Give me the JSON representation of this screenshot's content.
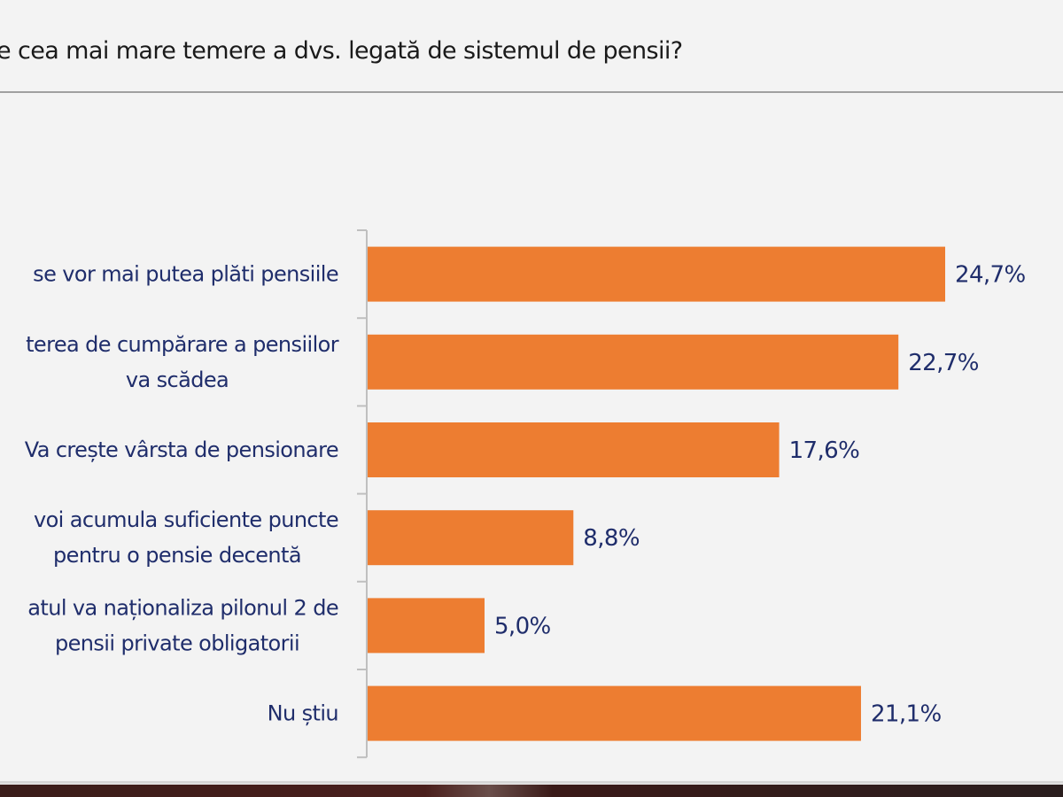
{
  "chart_data": {
    "type": "bar",
    "orientation": "horizontal",
    "title": "e cea mai mare temere a dvs. legată de sistemul de pensii?",
    "categories": [
      [
        "se vor mai putea plăti pensiile"
      ],
      [
        "terea de cumpărare a pensiilor",
        "va scădea"
      ],
      [
        "Va crește vârsta de pensionare"
      ],
      [
        "voi acumula suficiente puncte",
        "pentru o pensie decentă"
      ],
      [
        "atul va naționaliza pilonul 2 de",
        "pensii private obligatorii"
      ],
      [
        "Nu știu"
      ]
    ],
    "values": [
      24.7,
      22.7,
      17.6,
      8.8,
      5.0,
      21.1
    ],
    "value_labels": [
      "24,7%",
      "22,7%",
      "17,6%",
      "8,8%",
      "5,0%",
      "21,1%"
    ],
    "xlim": [
      0,
      25
    ],
    "grid": false,
    "colors": {
      "bar": "#ed7d31",
      "text": "#1f2d6b",
      "axis": "#bfbfbf"
    }
  }
}
